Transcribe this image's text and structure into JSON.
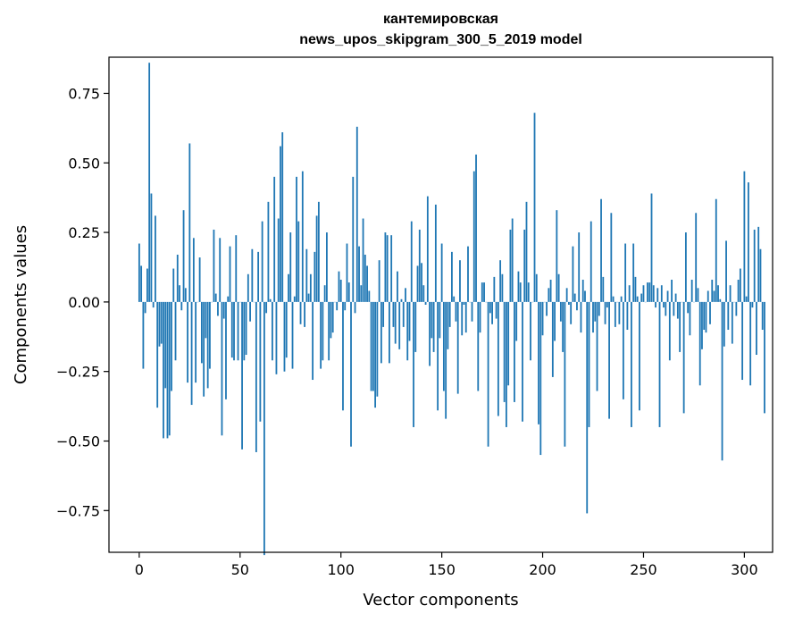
{
  "chart_data": {
    "type": "bar",
    "title_line1": "кантемировская",
    "title_line2": "news_upos_skipgram_300_5_2019 model",
    "xlabel": "Vector components",
    "ylabel": "Components values",
    "xlim": [
      -15,
      314
    ],
    "ylim": [
      -0.9,
      0.88
    ],
    "xticks": [
      0,
      50,
      100,
      150,
      200,
      250,
      300
    ],
    "xtick_labels": [
      "0",
      "50",
      "100",
      "150",
      "200",
      "250",
      "300"
    ],
    "yticks": [
      -0.75,
      -0.5,
      -0.25,
      0.0,
      0.25,
      0.5,
      0.75
    ],
    "ytick_labels": [
      "−0.75",
      "−0.50",
      "−0.25",
      "0.00",
      "0.25",
      "0.50",
      "0.75"
    ],
    "bar_color": "#1f77b4",
    "grid": false,
    "values": [
      0.21,
      0.13,
      -0.24,
      -0.04,
      0.12,
      0.86,
      0.39,
      -0.02,
      0.31,
      -0.38,
      -0.16,
      -0.15,
      -0.49,
      -0.31,
      -0.49,
      -0.48,
      -0.32,
      0.12,
      -0.21,
      0.17,
      0.06,
      -0.03,
      0.33,
      0.05,
      -0.29,
      0.57,
      -0.37,
      0.23,
      -0.29,
      0.0,
      0.16,
      -0.22,
      -0.34,
      -0.13,
      -0.31,
      -0.24,
      0.0,
      0.26,
      0.03,
      -0.05,
      0.23,
      -0.48,
      -0.06,
      -0.35,
      0.02,
      0.2,
      -0.2,
      -0.21,
      0.24,
      -0.21,
      0.0,
      -0.53,
      -0.21,
      -0.19,
      0.1,
      -0.07,
      0.19,
      0.0,
      -0.54,
      0.18,
      -0.43,
      0.29,
      -0.91,
      -0.04,
      0.36,
      0.01,
      -0.21,
      0.45,
      -0.26,
      0.3,
      0.56,
      0.61,
      -0.25,
      -0.2,
      0.1,
      0.25,
      -0.24,
      0.02,
      0.45,
      0.29,
      -0.08,
      0.47,
      -0.09,
      0.19,
      0.03,
      0.1,
      -0.28,
      0.18,
      0.31,
      0.36,
      -0.24,
      -0.21,
      0.06,
      0.25,
      -0.21,
      -0.13,
      -0.11,
      0.0,
      -0.03,
      0.11,
      0.08,
      -0.39,
      -0.03,
      0.21,
      0.07,
      -0.52,
      0.45,
      -0.04,
      0.63,
      0.2,
      0.06,
      0.3,
      0.17,
      0.13,
      0.04,
      -0.32,
      -0.32,
      -0.38,
      -0.34,
      0.15,
      -0.22,
      -0.09,
      0.25,
      0.24,
      -0.22,
      0.24,
      -0.09,
      -0.15,
      0.11,
      -0.17,
      0.01,
      -0.09,
      0.05,
      -0.21,
      -0.14,
      0.29,
      -0.45,
      -0.18,
      0.13,
      0.26,
      0.14,
      0.06,
      -0.01,
      0.38,
      -0.23,
      -0.13,
      -0.18,
      0.35,
      -0.39,
      -0.13,
      0.21,
      -0.32,
      -0.42,
      -0.17,
      -0.09,
      0.18,
      0.02,
      -0.07,
      -0.33,
      0.15,
      -0.12,
      -0.01,
      -0.11,
      0.2,
      0.0,
      -0.07,
      0.47,
      0.53,
      -0.32,
      -0.11,
      0.07,
      0.07,
      0.0,
      -0.52,
      -0.04,
      -0.08,
      0.09,
      -0.06,
      -0.41,
      0.15,
      0.1,
      -0.36,
      -0.45,
      -0.3,
      0.26,
      0.3,
      -0.36,
      -0.14,
      0.11,
      0.07,
      -0.43,
      0.26,
      0.36,
      0.07,
      -0.21,
      0.0,
      0.68,
      0.1,
      -0.44,
      -0.55,
      -0.12,
      0.0,
      -0.05,
      0.05,
      0.08,
      -0.27,
      -0.14,
      0.33,
      0.1,
      -0.07,
      -0.18,
      -0.52,
      0.05,
      -0.01,
      -0.08,
      0.2,
      0.03,
      -0.03,
      0.25,
      -0.11,
      0.08,
      0.04,
      -0.76,
      -0.45,
      0.29,
      -0.11,
      -0.07,
      -0.32,
      -0.05,
      0.37,
      0.09,
      -0.08,
      -0.02,
      -0.42,
      0.32,
      0.02,
      -0.09,
      0.0,
      -0.08,
      0.02,
      -0.35,
      0.21,
      -0.1,
      0.06,
      -0.45,
      0.21,
      0.09,
      0.02,
      -0.39,
      0.03,
      0.06,
      0.0,
      0.07,
      0.07,
      0.39,
      0.06,
      -0.02,
      0.05,
      -0.45,
      0.06,
      -0.02,
      -0.05,
      0.04,
      -0.21,
      0.08,
      -0.05,
      0.03,
      -0.06,
      -0.18,
      0.0,
      -0.4,
      0.25,
      -0.04,
      -0.12,
      0.08,
      0.0,
      0.32,
      0.05,
      -0.3,
      -0.17,
      -0.1,
      -0.11,
      0.04,
      -0.08,
      0.08,
      0.04,
      0.37,
      0.06,
      0.01,
      -0.57,
      -0.16,
      0.22,
      -0.1,
      0.06,
      -0.15,
      0.0,
      -0.05,
      0.08,
      0.12,
      -0.28,
      0.47,
      0.02,
      0.43,
      -0.3,
      -0.02,
      0.26,
      -0.19,
      0.27,
      0.19,
      -0.1,
      -0.4
    ]
  }
}
